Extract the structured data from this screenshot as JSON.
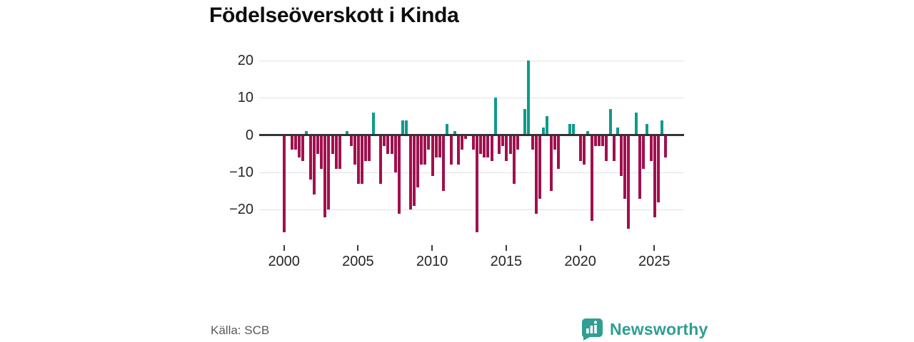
{
  "title": "Födelseöverskott i Kinda",
  "source": "Källa: SCB",
  "branding": {
    "name": "Newsworthy",
    "color": "#2f9e94",
    "icon": "bar-chart-speech-bubble"
  },
  "chart_data": {
    "type": "bar",
    "title": "Födelseöverskott i Kinda",
    "frequency": "quarterly",
    "grid": "horizontal",
    "ylim": [
      -27,
      22
    ],
    "yticks": [
      20,
      10,
      0,
      -10,
      -20
    ],
    "ytick_labels": [
      "20",
      "10",
      "0",
      "−10",
      "−20"
    ],
    "xticks": [
      2000,
      2005,
      2010,
      2015,
      2020,
      2025
    ],
    "xtick_labels": [
      "2000",
      "2005",
      "2010",
      "2015",
      "2020",
      "2025"
    ],
    "positive_color": "#0d9a8e",
    "negative_color": "#a0104e",
    "years": [
      2000,
      2001,
      2002,
      2003,
      2004,
      2005,
      2006,
      2007,
      2008,
      2009,
      2010,
      2011,
      2012,
      2013,
      2014,
      2015,
      2016,
      2017,
      2018,
      2019,
      2020,
      2021,
      2022,
      2023,
      2024,
      2025
    ],
    "series": [
      {
        "name": "Födelseöverskott",
        "values_by_year": [
          [
            -26,
            0,
            -4,
            -4
          ],
          [
            -6,
            -7,
            1,
            -12
          ],
          [
            -16,
            -5,
            -9,
            -22
          ],
          [
            -20,
            -5,
            -9,
            -9
          ],
          [
            0,
            1,
            -3,
            -8
          ],
          [
            -13,
            -13,
            -7,
            -7
          ],
          [
            6,
            0,
            -13,
            -3
          ],
          [
            -5,
            -5,
            -10,
            -21
          ],
          [
            4,
            4,
            -20,
            -19
          ],
          [
            -14,
            -8,
            -8,
            -4
          ],
          [
            -11,
            -6,
            -6,
            -15
          ],
          [
            3,
            -8,
            1,
            -8
          ],
          [
            -4,
            -1,
            0,
            -4
          ],
          [
            -26,
            -5,
            -6,
            -6
          ],
          [
            -7,
            10,
            -5,
            -3
          ],
          [
            -7,
            -5,
            -13,
            -4
          ],
          [
            0,
            7,
            20,
            -4
          ],
          [
            -21,
            -17,
            2,
            5
          ],
          [
            -15,
            -4,
            -9,
            0
          ],
          [
            0,
            3,
            3,
            0
          ],
          [
            -7,
            -8,
            1,
            -23
          ],
          [
            -3,
            -3,
            -3,
            -7
          ],
          [
            7,
            -7,
            2,
            -11
          ],
          [
            -17,
            -25,
            0,
            6
          ],
          [
            -17,
            -9,
            3,
            -7
          ],
          [
            -22,
            -18,
            4,
            -6
          ]
        ]
      }
    ]
  }
}
